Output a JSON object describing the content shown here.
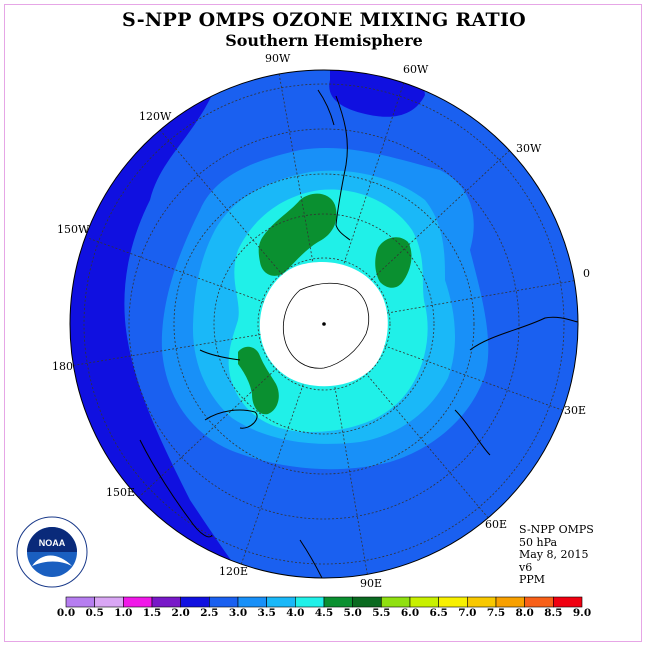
{
  "title": "S-NPP OMPS OZONE MIXING RATIO",
  "subtitle": "Southern Hemisphere",
  "longitude_labels": [
    "90W",
    "60W",
    "30W",
    "0",
    "30E",
    "60E",
    "90E",
    "120E",
    "150E",
    "180",
    "150W",
    "120W"
  ],
  "info": {
    "instrument": "S-NPP OMPS",
    "level": "50 hPa",
    "date": "May 8, 2015",
    "version": "v6",
    "units": "PPM"
  },
  "logo": {
    "text": "NOAA",
    "ring_text": "NATIONAL OCEANIC AND ATMOSPHERIC ADMINISTRATION · U.S. DEPARTMENT OF COMMERCE"
  },
  "colorbar": {
    "ticks": [
      "0.0",
      "0.5",
      "1.0",
      "1.5",
      "2.0",
      "2.5",
      "3.0",
      "3.5",
      "4.0",
      "4.5",
      "5.0",
      "5.5",
      "6.0",
      "6.5",
      "7.0",
      "7.5",
      "8.0",
      "8.5",
      "9.0"
    ],
    "colors": [
      "#b67ef0",
      "#d9a6f4",
      "#f018e8",
      "#7818c8",
      "#1010e0",
      "#1a60f0",
      "#1890f8",
      "#1ab8f8",
      "#20f0e8",
      "#0a9030",
      "#0a6a20",
      "#90e010",
      "#c8f000",
      "#f8f000",
      "#f8c800",
      "#f8a000",
      "#f86018",
      "#f00010",
      "#804830"
    ]
  },
  "map_colors": {
    "ring_2_0": "#1010e0",
    "ring_2_5": "#1a60f0",
    "ring_3_0": "#1890f8",
    "ring_3_5": "#1ab8f8",
    "ring_4_0": "#20f0e8",
    "ring_4_5": "#0a9030",
    "polar_night": "#ffffff"
  }
}
